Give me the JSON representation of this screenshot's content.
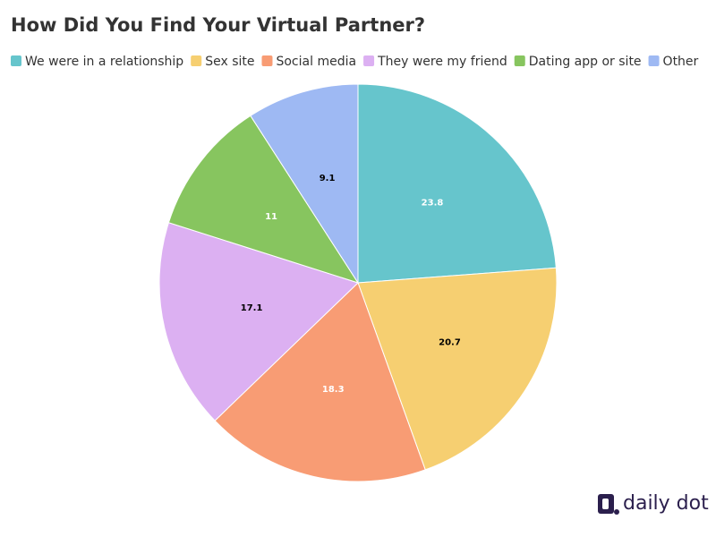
{
  "chart_data": {
    "type": "pie",
    "title": "How Did You Find Your Virtual Partner?",
    "categories": [
      "We were in a relationship",
      "Sex site",
      "Social media",
      "They were my friend",
      "Dating app or site",
      "Other"
    ],
    "values": [
      23.8,
      20.7,
      18.3,
      17.1,
      11,
      9.1
    ],
    "colors": [
      "#66c5cc",
      "#f6cf71",
      "#f89c74",
      "#dcb0f2",
      "#87c55f",
      "#9eb9f3"
    ],
    "label_colors": [
      "#ffffff",
      "#000000",
      "#ffffff",
      "#000000",
      "#ffffff",
      "#000000"
    ],
    "legend": "top-left",
    "logo": "daily dot"
  }
}
